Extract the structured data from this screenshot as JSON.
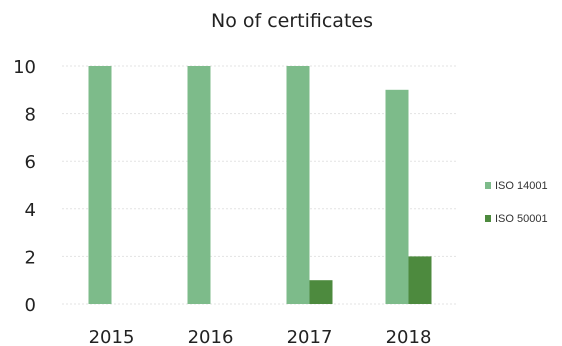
{
  "chart_data": {
    "type": "bar",
    "title": "No of certificates",
    "xlabel": "",
    "ylabel": "",
    "categories": [
      "2015",
      "2016",
      "2017",
      "2018"
    ],
    "series": [
      {
        "name": "ISO 14001",
        "values": [
          10,
          10,
          10,
          9
        ],
        "color": "#7dbb8a"
      },
      {
        "name": "ISO 50001",
        "values": [
          0,
          0,
          1,
          2
        ],
        "color": "#4d8a3e"
      }
    ],
    "ylim": [
      0,
      10
    ],
    "yticks": [
      "0",
      "2",
      "4",
      "6",
      "8",
      "10"
    ],
    "grid": true,
    "legend_position": "right"
  }
}
